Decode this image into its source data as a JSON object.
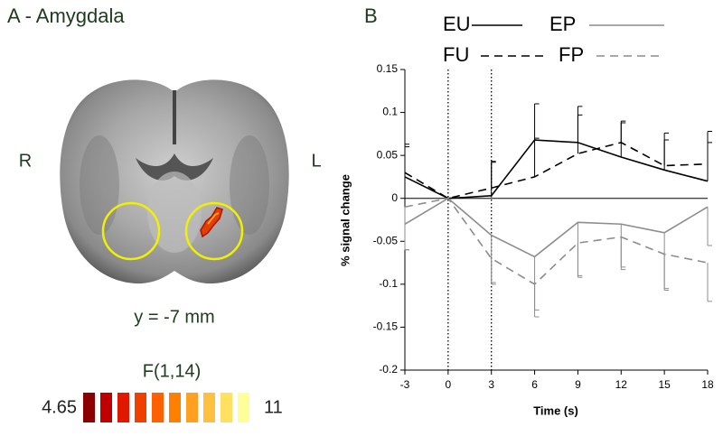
{
  "panel_a": {
    "title": "A - Amygdala",
    "left_side": "R",
    "right_side": "L",
    "slice": "y = -7 mm",
    "colorbar_title": "F(1,14)",
    "colorbar_min": "4.65",
    "colorbar_max": "11"
  },
  "chart_data": {
    "type": "line",
    "panel_label": "B",
    "xlabel": "Time (s)",
    "ylabel": "% signal change",
    "x": [
      -3,
      0,
      3,
      6,
      9,
      12,
      15,
      18
    ],
    "xlim": [
      -3,
      18
    ],
    "xticks": [
      -3,
      0,
      3,
      6,
      9,
      12,
      15,
      18
    ],
    "ylim": [
      -0.2,
      0.15
    ],
    "yticks": [
      -0.2,
      -0.15,
      -0.1,
      -0.05,
      0,
      0.05,
      0.1,
      0.15
    ],
    "vlines": [
      0,
      3
    ],
    "series": [
      {
        "name": "EU",
        "color": "#000000",
        "style": "solid",
        "values": [
          0.025,
          0,
          0.003,
          0.068,
          0.065,
          0.048,
          0.033,
          0.02
        ],
        "errors": [
          0.038,
          0,
          0.04,
          0.042,
          0.042,
          0.04,
          0.035,
          0.045
        ]
      },
      {
        "name": "EP",
        "color": "#8c8c8c",
        "style": "solid",
        "values": [
          -0.03,
          0,
          -0.043,
          -0.068,
          -0.028,
          -0.03,
          -0.04,
          -0.01
        ],
        "errors": [
          0.03,
          0,
          0.055,
          0.07,
          0.062,
          0.05,
          0.065,
          0.045
        ]
      },
      {
        "name": "FU",
        "color": "#000000",
        "style": "dashed",
        "values": [
          0.03,
          0,
          0.012,
          0.025,
          0.052,
          0.065,
          0.038,
          0.04
        ],
        "errors": [
          0.03,
          0,
          0.03,
          0.045,
          0.045,
          0.025,
          0.038,
          0.038
        ]
      },
      {
        "name": "FP",
        "color": "#8c8c8c",
        "style": "dashed",
        "values": [
          -0.01,
          0,
          -0.07,
          -0.1,
          -0.052,
          -0.045,
          -0.065,
          -0.075
        ],
        "errors": [
          0.05,
          0,
          0.03,
          0.03,
          0.04,
          0.038,
          0.042,
          0.045
        ]
      }
    ]
  }
}
